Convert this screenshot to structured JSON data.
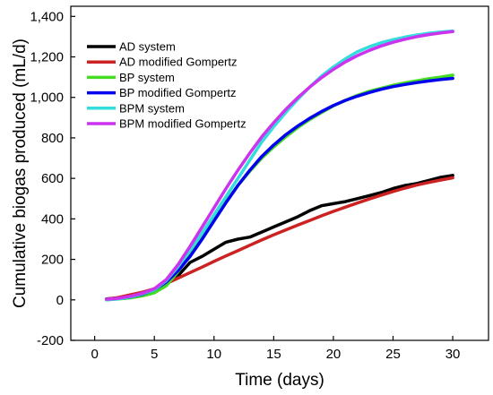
{
  "chart_data": {
    "type": "line",
    "title": "",
    "xlabel": "Time (days)",
    "ylabel": "Cumulative biogas produced (mL/d)",
    "xlim": [
      -2,
      33
    ],
    "ylim": [
      -200,
      1450
    ],
    "xticks": [
      0,
      5,
      10,
      15,
      20,
      25,
      30
    ],
    "yticks": [
      -200,
      0,
      200,
      400,
      600,
      800,
      1000,
      1200,
      1400
    ],
    "ytick_labels": [
      "-200",
      "0",
      "200",
      "400",
      "600",
      "800",
      "1,000",
      "1,200",
      "1,400"
    ],
    "grid": false,
    "legend_position": "top-left",
    "series": [
      {
        "name": "AD system",
        "color": "#000000",
        "x": [
          1,
          2,
          3,
          4,
          5,
          6,
          7,
          8,
          9,
          10,
          11,
          12,
          13,
          14,
          15,
          16,
          17,
          18,
          19,
          20,
          21,
          22,
          23,
          24,
          25,
          26,
          27,
          28,
          29,
          30
        ],
        "y": [
          5,
          10,
          20,
          30,
          45,
          80,
          120,
          185,
          215,
          250,
          285,
          300,
          310,
          335,
          360,
          385,
          410,
          440,
          465,
          475,
          485,
          500,
          515,
          530,
          550,
          565,
          575,
          590,
          605,
          615
        ]
      },
      {
        "name": "AD modified Gompertz",
        "color": "#cc2222",
        "x": [
          1,
          2,
          3,
          4,
          5,
          6,
          7,
          8,
          9,
          10,
          11,
          12,
          13,
          14,
          15,
          16,
          17,
          18,
          19,
          20,
          21,
          22,
          23,
          24,
          25,
          26,
          27,
          28,
          29,
          30
        ],
        "y": [
          3,
          12,
          25,
          38,
          55,
          80,
          108,
          135,
          162,
          190,
          217,
          243,
          270,
          296,
          321,
          345,
          369,
          392,
          415,
          437,
          458,
          478,
          498,
          517,
          535,
          552,
          567,
          580,
          592,
          603
        ]
      },
      {
        "name": "BP system",
        "color": "#44dd22",
        "x": [
          1,
          2,
          3,
          4,
          5,
          6,
          7,
          8,
          9,
          10,
          11,
          12,
          13,
          14,
          15,
          16,
          17,
          18,
          19,
          20,
          21,
          22,
          23,
          24,
          25,
          26,
          27,
          28,
          29,
          30
        ],
        "y": [
          0,
          5,
          10,
          20,
          35,
          70,
          140,
          225,
          315,
          400,
          485,
          565,
          635,
          700,
          755,
          805,
          850,
          890,
          925,
          958,
          985,
          1010,
          1030,
          1045,
          1060,
          1072,
          1082,
          1092,
          1100,
          1110
        ]
      },
      {
        "name": "BP  modified Gompertz",
        "color": "#0000ee",
        "x": [
          1,
          2,
          3,
          4,
          5,
          6,
          7,
          8,
          9,
          10,
          11,
          12,
          13,
          14,
          15,
          16,
          17,
          18,
          19,
          20,
          21,
          22,
          23,
          24,
          25,
          26,
          27,
          28,
          29,
          30
        ],
        "y": [
          2,
          6,
          14,
          28,
          50,
          88,
          145,
          215,
          300,
          390,
          480,
          565,
          640,
          708,
          765,
          815,
          858,
          896,
          930,
          960,
          985,
          1006,
          1024,
          1040,
          1053,
          1064,
          1073,
          1081,
          1088,
          1094
        ]
      },
      {
        "name": "BPM system",
        "color": "#33dddd",
        "x": [
          1,
          2,
          3,
          4,
          5,
          6,
          7,
          8,
          9,
          10,
          11,
          12,
          13,
          14,
          15,
          16,
          17,
          18,
          19,
          20,
          21,
          22,
          23,
          24,
          25,
          26,
          27,
          28,
          29,
          30
        ],
        "y": [
          0,
          5,
          15,
          30,
          50,
          95,
          165,
          245,
          330,
          420,
          510,
          600,
          690,
          780,
          855,
          925,
          990,
          1050,
          1105,
          1150,
          1190,
          1225,
          1250,
          1270,
          1285,
          1298,
          1308,
          1317,
          1323,
          1328
        ]
      },
      {
        "name": "BPM  modified Gompertz",
        "color": "#cc33ee",
        "x": [
          1,
          2,
          3,
          4,
          5,
          6,
          7,
          8,
          9,
          10,
          11,
          12,
          13,
          14,
          15,
          16,
          17,
          18,
          19,
          20,
          21,
          22,
          23,
          24,
          25,
          26,
          27,
          28,
          29,
          30
        ],
        "y": [
          3,
          8,
          18,
          33,
          55,
          100,
          175,
          265,
          360,
          455,
          550,
          640,
          725,
          805,
          875,
          940,
          998,
          1050,
          1097,
          1138,
          1175,
          1206,
          1232,
          1254,
          1272,
          1287,
          1300,
          1310,
          1318,
          1325
        ]
      }
    ]
  }
}
